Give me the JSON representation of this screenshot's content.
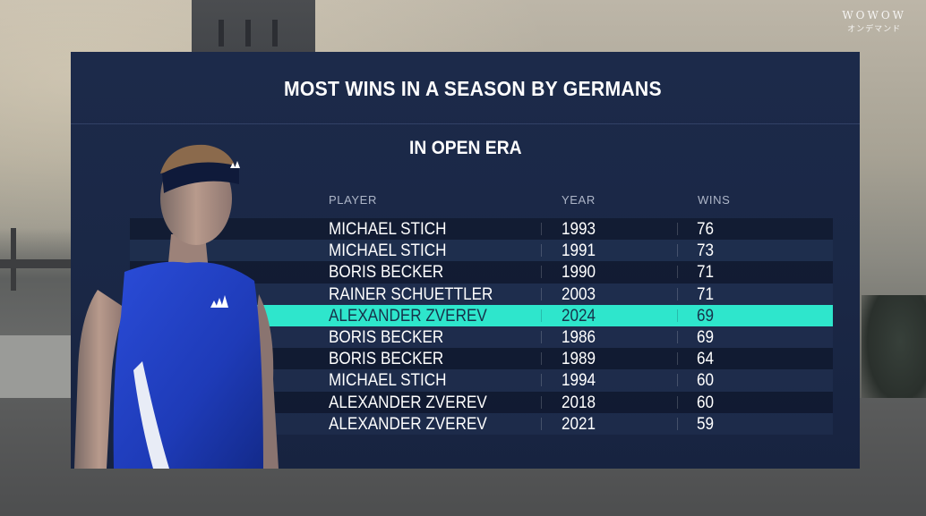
{
  "watermark": {
    "brand": "WOWOW",
    "sub": "オンデマンド"
  },
  "panel": {
    "title": "MOST WINS IN A SEASON BY GERMANS",
    "subtitle": "IN OPEN ERA",
    "columns": {
      "player": "PLAYER",
      "year": "YEAR",
      "wins": "WINS"
    },
    "highlight_color": "#2ee6cc",
    "panel_color": "#1c2a4a",
    "rows": [
      {
        "player": "MICHAEL STICH",
        "year": "1993",
        "wins": "76"
      },
      {
        "player": "MICHAEL STICH",
        "year": "1991",
        "wins": "73"
      },
      {
        "player": "BORIS BECKER",
        "year": "1990",
        "wins": "71"
      },
      {
        "player": "RAINER SCHUETTLER",
        "year": "2003",
        "wins": "71"
      },
      {
        "player": "ALEXANDER ZVEREV",
        "year": "2024",
        "wins": "69"
      },
      {
        "player": "BORIS BECKER",
        "year": "1986",
        "wins": "69"
      },
      {
        "player": "BORIS BECKER",
        "year": "1989",
        "wins": "64"
      },
      {
        "player": "MICHAEL STICH",
        "year": "1994",
        "wins": "60"
      },
      {
        "player": "ALEXANDER ZVEREV",
        "year": "2018",
        "wins": "60"
      },
      {
        "player": "ALEXANDER ZVEREV",
        "year": "2021",
        "wins": "59"
      }
    ],
    "highlighted_row_index": 4
  }
}
